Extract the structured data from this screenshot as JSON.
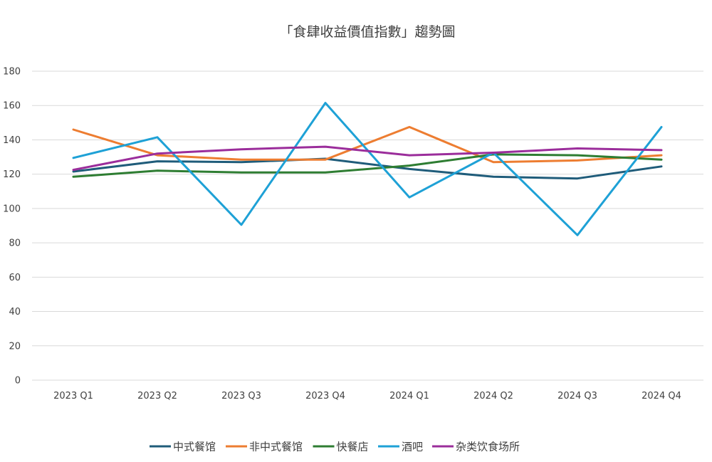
{
  "chart_data": {
    "type": "line",
    "title": "「食肆收益價值指數」趨勢圖",
    "xlabel": "",
    "ylabel": "",
    "categories": [
      "2023 Q1",
      "2023 Q2",
      "2023 Q3",
      "2023 Q4",
      "2024 Q1",
      "2024 Q2",
      "2024 Q3",
      "2024 Q4"
    ],
    "ylim": [
      0,
      180
    ],
    "yticks": [
      0,
      20,
      40,
      60,
      80,
      100,
      120,
      140,
      160,
      180
    ],
    "grid": true,
    "legend_position": "bottom",
    "series": [
      {
        "name": "中式餐馆",
        "color": "#1f5c7a",
        "values": [
          121.5,
          127.5,
          127,
          129,
          123,
          118.5,
          117.5,
          124.5
        ]
      },
      {
        "name": "非中式餐馆",
        "color": "#ed7d31",
        "values": [
          146,
          131,
          128.5,
          128.5,
          147.5,
          127,
          128,
          131
        ]
      },
      {
        "name": "快餐店",
        "color": "#2e7d32",
        "values": [
          118.5,
          122,
          121,
          121,
          125,
          131.5,
          131,
          128.5
        ]
      },
      {
        "name": "酒吧",
        "color": "#1ea1d6",
        "values": [
          129.5,
          141.5,
          90.5,
          161.5,
          106.5,
          132.5,
          84.5,
          147.5
        ]
      },
      {
        "name": "杂类饮食场所",
        "color": "#9b2d9b",
        "values": [
          122.5,
          132,
          134.5,
          136,
          131,
          132.5,
          135,
          134
        ]
      }
    ]
  }
}
